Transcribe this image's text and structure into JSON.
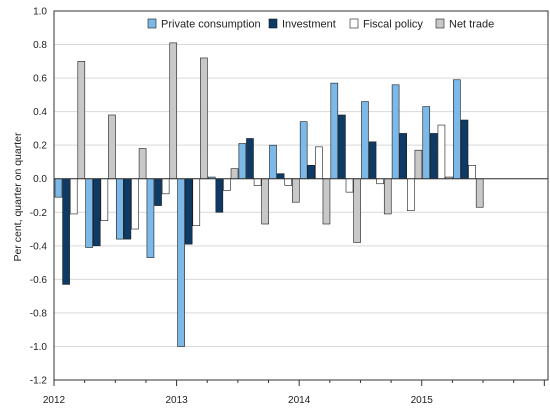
{
  "chart_data": {
    "type": "bar",
    "title": "",
    "xlabel": "",
    "ylabel": "Per cent, quarter on quarter",
    "ylim": [
      -1.2,
      1.0
    ],
    "yticks": [
      "1.0",
      "0.8",
      "0.6",
      "0.4",
      "0.2",
      "0.0",
      "-0.2",
      "-0.4",
      "-0.6",
      "-0.8",
      "-1.0",
      "-1.2"
    ],
    "years": [
      "2012",
      "2013",
      "2014",
      "2015"
    ],
    "categories": [
      "2012 Q1",
      "2012 Q2",
      "2012 Q3",
      "2012 Q4",
      "2013 Q1",
      "2013 Q2",
      "2013 Q3",
      "2013 Q4",
      "2014 Q1",
      "2014 Q2",
      "2014 Q3",
      "2014 Q4",
      "2015 Q1",
      "2015 Q2",
      "2015 Q3",
      "2015 Q4"
    ],
    "grid": true,
    "legend_position": "top-right",
    "series": [
      {
        "name": "Private consumption",
        "color": "#7cb9e8",
        "values": [
          -0.11,
          -0.41,
          -0.36,
          -0.47,
          -1.0,
          0.01,
          0.21,
          0.2,
          0.34,
          0.57,
          0.46,
          0.56,
          0.43,
          0.59,
          null,
          null
        ]
      },
      {
        "name": "Investment",
        "color": "#0d3b66",
        "values": [
          -0.63,
          -0.4,
          -0.36,
          -0.16,
          -0.39,
          -0.2,
          0.24,
          0.03,
          0.08,
          0.38,
          0.22,
          0.27,
          0.27,
          0.35,
          null,
          null
        ]
      },
      {
        "name": "Fiscal policy",
        "color": "#ffffff",
        "values": [
          -0.21,
          -0.25,
          -0.3,
          -0.09,
          -0.28,
          -0.07,
          -0.04,
          -0.04,
          0.19,
          -0.08,
          -0.03,
          -0.19,
          0.32,
          0.08,
          null,
          null
        ]
      },
      {
        "name": "Net trade",
        "color": "#c8c8c8",
        "values": [
          0.7,
          0.38,
          0.18,
          0.81,
          0.72,
          0.06,
          -0.27,
          -0.14,
          -0.27,
          -0.38,
          -0.21,
          0.17,
          0.01,
          -0.17,
          null,
          null
        ]
      }
    ]
  }
}
